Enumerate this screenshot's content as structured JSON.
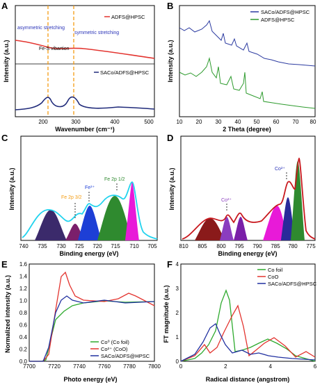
{
  "panels": [
    {
      "id": "A",
      "letter": "A",
      "xlabel": "Wavenumber (cm⁻¹)",
      "ylabel": "Intensity (a.u.)",
      "xticks": [
        "200",
        "300",
        "400",
        "500"
      ],
      "legend_top": "ADFS@HPSC",
      "legend_bottom": "SACo/ADFS@HPSC",
      "annotations": [
        "asymmetric stretching",
        "symmetric stretching",
        "Fe-S vibartion"
      ],
      "colors": {
        "top": "#e3342f",
        "bottom": "#1f2a7a",
        "guide": "#f39c12",
        "anno": "#2a33b8"
      }
    },
    {
      "id": "B",
      "letter": "B",
      "xlabel": "2 Theta (degree)",
      "ylabel": "Intensity (a.u.)",
      "xticks": [
        "10",
        "20",
        "30",
        "40",
        "50",
        "60",
        "70",
        "80"
      ],
      "legend": [
        "SACo/ADFS@HPSC",
        "ADFS@HPSC"
      ],
      "colors": {
        "top": "#2b3aa0",
        "bottom": "#2e9b2e"
      }
    },
    {
      "id": "C",
      "letter": "C",
      "xlabel": "Binding energy (eV)",
      "ylabel": "Intensity (a.u.)",
      "xticks": [
        "740",
        "735",
        "730",
        "725",
        "720",
        "715",
        "710",
        "705"
      ],
      "annotations": [
        "Fe 2p 3/2",
        "Fe³⁺",
        "Fe 2p 1/2"
      ],
      "colors": {
        "envelope": "#22d3ee",
        "p1": "#3b2a6b",
        "p2": "#7b1f6b",
        "p3": "#1d3fd6",
        "p4": "#2f8a2f",
        "p5": "#e81ad8",
        "a1": "#f39c12",
        "a2": "#1d3fd6",
        "a3": "#2f8a2f"
      }
    },
    {
      "id": "D",
      "letter": "D",
      "xlabel": "Binding energy (eV)",
      "ylabel": "Intensity (a.u.)",
      "xticks": [
        "810",
        "805",
        "800",
        "795",
        "790",
        "785",
        "780",
        "775"
      ],
      "annotations": [
        "Co²⁺",
        "Co²⁺"
      ],
      "colors": {
        "envelope": "#c8181e",
        "p1": "#8a1a1a",
        "p2": "#8b3dbf",
        "p3": "#7a1fa8",
        "p4": "#e81ad8",
        "p5": "#2a2a9a",
        "p6": "#2f8a2f",
        "a1": "#8b3dbf",
        "a2": "#2a33b8"
      }
    },
    {
      "id": "E",
      "letter": "E",
      "xlabel": "Photo energy (eV)",
      "ylabel": "Normalized intensity (a.u.)",
      "xticks": [
        "7700",
        "7720",
        "7740",
        "7760",
        "7780",
        "7800"
      ],
      "yticks": [
        "0.0",
        "0.2",
        "0.4",
        "0.6",
        "0.8",
        "1.0",
        "1.2",
        "1.4",
        "1.6"
      ],
      "legend": [
        "Co⁰ (Co foil)",
        "Co²⁺ (CoO)",
        "SACo/ADFS@HPSC"
      ],
      "colors": {
        "green": "#2eaa2e",
        "red": "#e3342f",
        "blue": "#2030a0"
      }
    },
    {
      "id": "F",
      "letter": "F",
      "xlabel": "Radical distance (angstrom)",
      "ylabel": "FT magnitude (a.u.)",
      "xticks": [
        "0",
        "2",
        "4",
        "6"
      ],
      "yticks": [
        "0",
        "1",
        "2",
        "3",
        "4"
      ],
      "legend": [
        "Co foil",
        "CoO",
        "SACo/ADFS@HPSC"
      ],
      "colors": {
        "green": "#2eaa2e",
        "red": "#e3342f",
        "blue": "#2030a0"
      }
    }
  ],
  "chart_data": [
    {
      "panel": "A",
      "type": "line",
      "xlabel": "Wavenumber (cm⁻¹)",
      "ylabel": "Intensity (a.u.)",
      "xlim": [
        150,
        500
      ],
      "series": [
        {
          "name": "ADFS@HPSC",
          "x": [
            150,
            180,
            215,
            250,
            280,
            320,
            360,
            400,
            450,
            500
          ],
          "y": [
            0.95,
            0.9,
            0.86,
            0.84,
            0.83,
            0.78,
            0.72,
            0.68,
            0.63,
            0.6
          ]
        },
        {
          "name": "SACo/ADFS@HPSC",
          "x": [
            150,
            180,
            200,
            215,
            235,
            255,
            280,
            305,
            340,
            400,
            450,
            500
          ],
          "y": [
            0.05,
            0.08,
            0.15,
            0.35,
            0.15,
            0.14,
            0.3,
            0.12,
            0.08,
            0.1,
            0.08,
            0.08
          ]
        }
      ],
      "guides_x": [
        218,
        283
      ]
    },
    {
      "panel": "B",
      "type": "line",
      "xlabel": "2 Theta (degree)",
      "ylabel": "Intensity (a.u.)",
      "xlim": [
        10,
        80
      ],
      "series": [
        {
          "name": "SACo/ADFS@HPSC",
          "x": [
            10,
            15,
            20,
            24,
            26,
            28,
            30,
            32,
            35,
            40,
            44,
            48,
            53,
            60,
            70,
            80
          ],
          "y": [
            0.7,
            0.68,
            0.72,
            0.78,
            0.88,
            0.72,
            0.66,
            0.63,
            0.66,
            0.58,
            0.62,
            0.54,
            0.55,
            0.52,
            0.5,
            0.5
          ]
        },
        {
          "name": "ADFS@HPSC",
          "x": [
            10,
            15,
            20,
            24,
            26,
            28,
            30,
            32,
            35,
            40,
            44,
            48,
            53,
            60,
            70,
            80
          ],
          "y": [
            0.4,
            0.38,
            0.42,
            0.48,
            0.62,
            0.44,
            0.48,
            0.36,
            0.46,
            0.3,
            0.44,
            0.24,
            0.26,
            0.2,
            0.18,
            0.15
          ]
        }
      ]
    },
    {
      "panel": "C",
      "type": "area",
      "xlabel": "Binding energy (eV)",
      "ylabel": "Intensity (a.u.)",
      "xlim": [
        740,
        705
      ],
      "peaks": [
        {
          "center": 733,
          "height": 0.35
        },
        {
          "center": 725.5,
          "height": 0.18
        },
        {
          "center": 720,
          "height": 0.4
        },
        {
          "center": 713,
          "height": 0.55
        },
        {
          "center": 709,
          "height": 0.7
        }
      ]
    },
    {
      "panel": "D",
      "type": "area",
      "xlabel": "Binding energy (eV)",
      "ylabel": "Intensity (a.u.)",
      "xlim": [
        810,
        775
      ],
      "peaks": [
        {
          "center": 802.5,
          "height": 0.18
        },
        {
          "center": 797.5,
          "height": 0.22
        },
        {
          "center": 794.5,
          "height": 0.22
        },
        {
          "center": 785.5,
          "height": 0.45
        },
        {
          "center": 781,
          "height": 0.55
        },
        {
          "center": 779,
          "height": 0.9
        }
      ]
    },
    {
      "panel": "E",
      "type": "line",
      "xlabel": "Photo energy (eV)",
      "ylabel": "Normalized intensity (a.u.)",
      "xlim": [
        7690,
        7800
      ],
      "ylim": [
        0,
        1.6
      ],
      "series": [
        {
          "name": "Co⁰ (Co foil)",
          "x": [
            7690,
            7705,
            7712,
            7718,
            7725,
            7735,
            7745,
            7760,
            7780,
            7800
          ],
          "y": [
            0.0,
            0.05,
            0.45,
            0.65,
            0.78,
            0.9,
            0.95,
            1.0,
            0.96,
            0.98
          ]
        },
        {
          "name": "Co²⁺ (CoO)",
          "x": [
            7690,
            7705,
            7712,
            7718,
            7725,
            7730,
            7740,
            7755,
            7770,
            7780,
            7800
          ],
          "y": [
            0.0,
            0.02,
            0.25,
            0.9,
            1.55,
            1.2,
            0.95,
            0.92,
            1.15,
            1.05,
            0.95
          ]
        },
        {
          "name": "SACo/ADFS@HPSC",
          "x": [
            7690,
            7705,
            7712,
            7718,
            7725,
            7730,
            7740,
            7755,
            7770,
            7780,
            7800
          ],
          "y": [
            0.0,
            0.05,
            0.55,
            0.9,
            1.12,
            1.02,
            0.96,
            1.0,
            0.97,
            0.98,
            0.98
          ]
        }
      ]
    },
    {
      "panel": "F",
      "type": "line",
      "xlabel": "Radical distance (angstrom)",
      "ylabel": "FT magnitude (a.u.)",
      "xlim": [
        0,
        6
      ],
      "ylim": [
        0,
        4
      ],
      "series": [
        {
          "name": "Co foil",
          "x": [
            0,
            0.8,
            1.2,
            1.6,
            2.0,
            2.2,
            2.5,
            3.0,
            3.5,
            4.0,
            4.5,
            5.0,
            6.0
          ],
          "y": [
            0.0,
            0.2,
            0.7,
            1.4,
            2.85,
            2.5,
            0.4,
            0.5,
            0.7,
            0.85,
            0.5,
            0.2,
            0.0
          ]
        },
        {
          "name": "CoO",
          "x": [
            0,
            0.8,
            1.3,
            1.7,
            2.0,
            2.4,
            2.8,
            3.2,
            3.8,
            4.4,
            5.0,
            5.6,
            6.0
          ],
          "y": [
            0.0,
            0.3,
            0.8,
            0.4,
            0.8,
            2.4,
            0.6,
            0.1,
            0.6,
            0.9,
            0.3,
            0.5,
            0.2
          ]
        },
        {
          "name": "SACo/ADFS@HPSC",
          "x": [
            0,
            0.8,
            1.2,
            1.5,
            1.8,
            2.1,
            2.5,
            3.0,
            3.5,
            4.0,
            4.5,
            5.0,
            6.0
          ],
          "y": [
            0.0,
            0.3,
            0.9,
            1.55,
            0.8,
            0.5,
            0.2,
            0.3,
            0.2,
            0.25,
            0.15,
            0.1,
            0.05
          ]
        }
      ]
    }
  ]
}
